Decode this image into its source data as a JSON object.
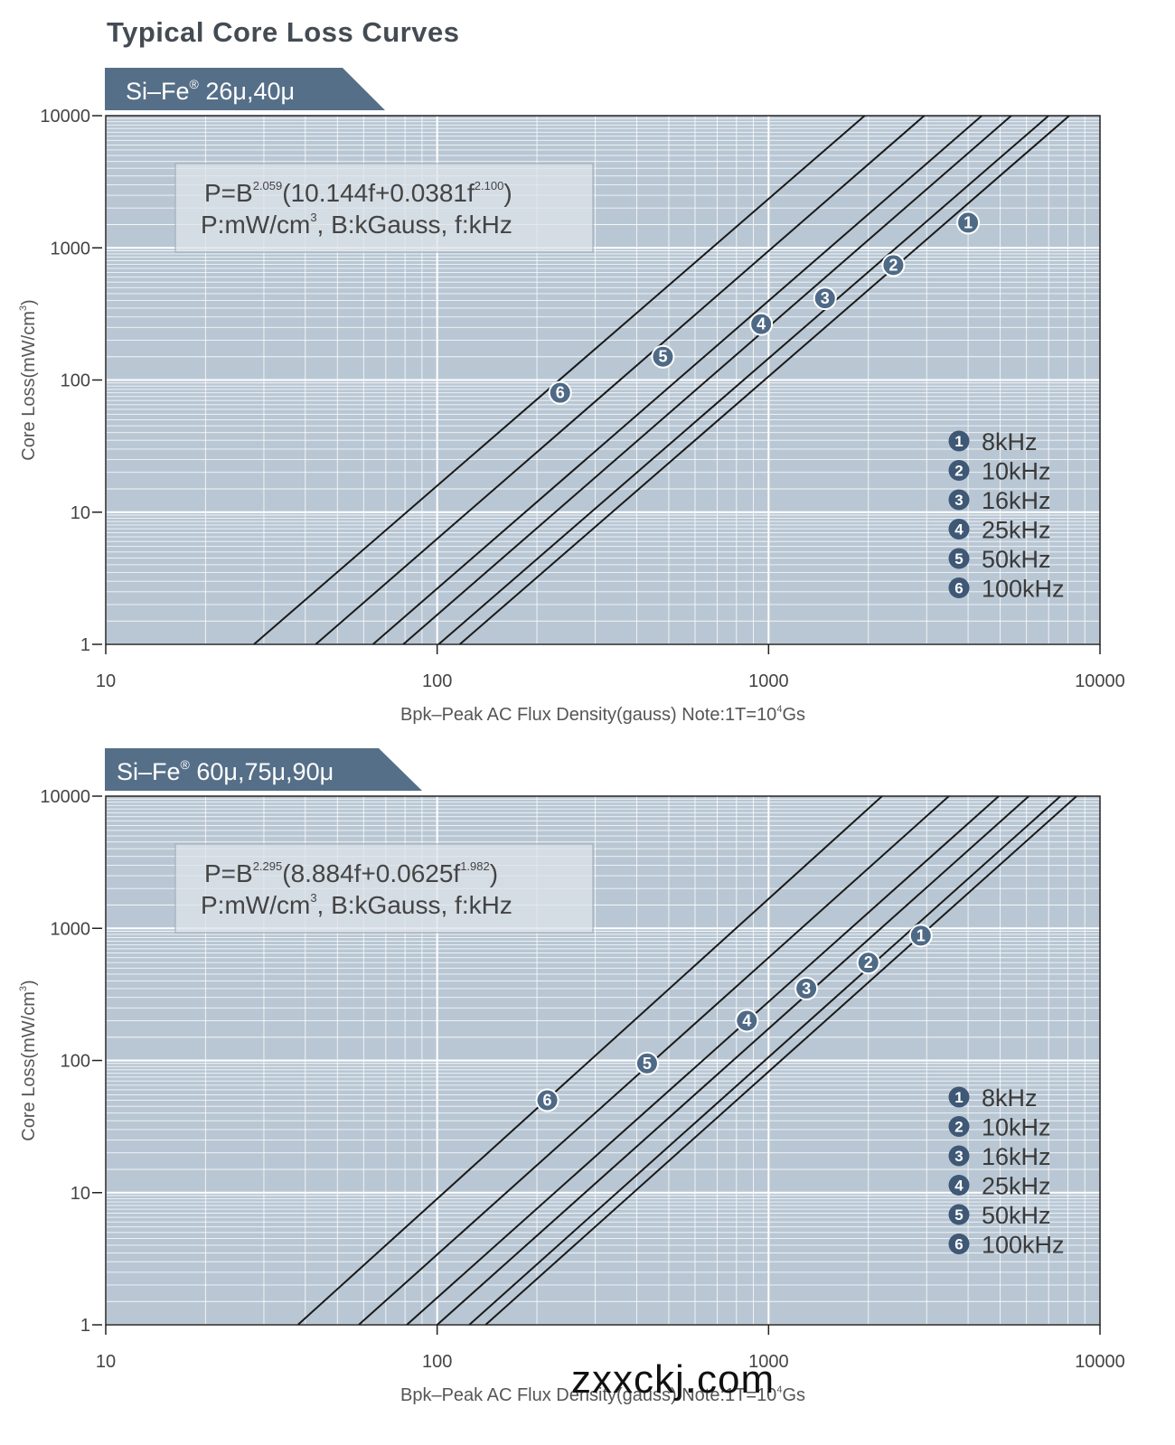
{
  "page": {
    "title": "Typical Core Loss Curves",
    "watermark": "zxxckj.com"
  },
  "chart_data": [
    {
      "type": "line",
      "title": "Si–Fe® 26μ,40μ",
      "title_parts": {
        "main": "Si–Fe",
        "reg": "®",
        "sub": " 26μ,40μ"
      },
      "formula": {
        "line1_pre": "P=B",
        "exp1": "2.059",
        "line1_mid": "(10.144f+0.0381f",
        "exp2": "2.100",
        "line1_post": ")",
        "line2_pre": "P:mW/cm",
        "exp3": "3",
        "line2_post": ",  B:kGauss,  f:kHz"
      },
      "xlabel_pre": "Bpk–Peak AC Flux Density(gauss) Note:1T=10",
      "xlabel_exp": "4",
      "xlabel_post": "Gs",
      "ylabel_pre": "Core Loss(mW/cm",
      "ylabel_exp": "3",
      "ylabel_post": ")",
      "xscale": "log",
      "yscale": "log",
      "xlim": [
        10,
        10000
      ],
      "ylim": [
        1,
        10000
      ],
      "xticks": [
        "10",
        "100",
        "1000",
        "10000"
      ],
      "yticks": [
        "1",
        "10",
        "100",
        "1000",
        "10000"
      ],
      "grid": true,
      "legend_position": "right",
      "series": [
        {
          "id": "1",
          "name": "8kHz",
          "x": [
            117,
            8080
          ],
          "y": [
            1,
            10000
          ],
          "marker": [
            4000,
            1550
          ]
        },
        {
          "id": "2",
          "name": "10kHz",
          "x": [
            101,
            7000
          ],
          "y": [
            1,
            10000
          ],
          "marker": [
            2380,
            740
          ]
        },
        {
          "id": "3",
          "name": "16kHz",
          "x": [
            79,
            5400
          ],
          "y": [
            1,
            10000
          ],
          "marker": [
            1480,
            415
          ]
        },
        {
          "id": "4",
          "name": "25kHz",
          "x": [
            64,
            4400
          ],
          "y": [
            1,
            10000
          ],
          "marker": [
            950,
            265
          ]
        },
        {
          "id": "5",
          "name": "50kHz",
          "x": [
            43,
            2950
          ],
          "y": [
            1,
            10000
          ],
          "marker": [
            480,
            150
          ]
        },
        {
          "id": "6",
          "name": "100kHz",
          "x": [
            28,
            1950
          ],
          "y": [
            1,
            10000
          ],
          "marker": [
            235,
            80
          ]
        }
      ]
    },
    {
      "type": "line",
      "title": "Si–Fe® 60μ,75μ,90μ",
      "title_parts": {
        "main": "Si–Fe",
        "reg": "®",
        "sub": " 60μ,75μ,90μ"
      },
      "formula": {
        "line1_pre": "P=B",
        "exp1": "2.295",
        "line1_mid": "(8.884f+0.0625f",
        "exp2": "1.982",
        "line1_post": ")",
        "line2_pre": "P:mW/cm",
        "exp3": "3",
        "line2_post": ",  B:kGauss,  f:kHz"
      },
      "xlabel_pre": "Bpk–Peak AC Flux Density(gauss) Note:1T=10",
      "xlabel_exp": "4",
      "xlabel_post": "Gs",
      "ylabel_pre": "Core Loss(mW/cm",
      "ylabel_exp": "3",
      "ylabel_post": ")",
      "xscale": "log",
      "yscale": "log",
      "xlim": [
        10,
        10000
      ],
      "ylim": [
        1,
        10000
      ],
      "xticks": [
        "10",
        "100",
        "1000",
        "10000"
      ],
      "yticks": [
        "1",
        "10",
        "100",
        "1000",
        "10000"
      ],
      "grid": true,
      "legend_position": "right",
      "series": [
        {
          "id": "1",
          "name": "8kHz",
          "x": [
            140,
            8500
          ],
          "y": [
            1,
            10000
          ],
          "marker": [
            2880,
            880
          ]
        },
        {
          "id": "2",
          "name": "10kHz",
          "x": [
            125,
            7600
          ],
          "y": [
            1,
            10000
          ],
          "marker": [
            2000,
            550
          ]
        },
        {
          "id": "3",
          "name": "16kHz",
          "x": [
            100,
            6100
          ],
          "y": [
            1,
            10000
          ],
          "marker": [
            1300,
            350
          ]
        },
        {
          "id": "4",
          "name": "25kHz",
          "x": [
            81,
            4950
          ],
          "y": [
            1,
            10000
          ],
          "marker": [
            860,
            200
          ]
        },
        {
          "id": "5",
          "name": "50kHz",
          "x": [
            58,
            3500
          ],
          "y": [
            1,
            10000
          ],
          "marker": [
            430,
            95
          ]
        },
        {
          "id": "6",
          "name": "100kHz",
          "x": [
            38,
            2200
          ],
          "y": [
            1,
            10000
          ],
          "marker": [
            215,
            50
          ]
        }
      ]
    }
  ]
}
